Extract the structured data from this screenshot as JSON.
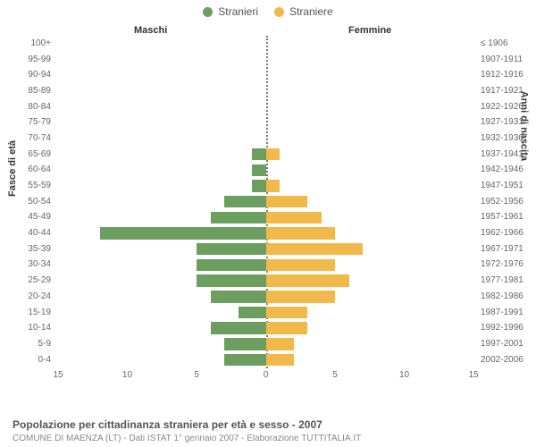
{
  "legend": {
    "male": {
      "label": "Stranieri",
      "color": "#6b9e5f"
    },
    "female": {
      "label": "Straniere",
      "color": "#f0b94a"
    }
  },
  "section_titles": {
    "male": "Maschi",
    "female": "Femmine"
  },
  "axis_titles": {
    "left": "Fasce di età",
    "right": "Anni di nascita"
  },
  "x_axis": {
    "min": -15,
    "max": 15,
    "ticks": [
      -15,
      -10,
      -5,
      0,
      5,
      10,
      15
    ],
    "tick_labels": [
      "15",
      "10",
      "5",
      "0",
      "5",
      "10",
      "15"
    ]
  },
  "styling": {
    "male_bar_color": "#6b9e5f",
    "female_bar_color": "#f0b94a",
    "grid_zero_color": "#777777",
    "background": "#ffffff",
    "label_color": "#666666",
    "title_fontsize": 12,
    "label_fontsize": 10,
    "bar_height_ratio": 0.76
  },
  "rows": [
    {
      "age": "100+",
      "birth": "≤ 1906",
      "m": 0,
      "f": 0
    },
    {
      "age": "95-99",
      "birth": "1907-1911",
      "m": 0,
      "f": 0
    },
    {
      "age": "90-94",
      "birth": "1912-1916",
      "m": 0,
      "f": 0
    },
    {
      "age": "85-89",
      "birth": "1917-1921",
      "m": 0,
      "f": 0
    },
    {
      "age": "80-84",
      "birth": "1922-1926",
      "m": 0,
      "f": 0
    },
    {
      "age": "75-79",
      "birth": "1927-1931",
      "m": 0,
      "f": 0
    },
    {
      "age": "70-74",
      "birth": "1932-1936",
      "m": 0,
      "f": 0
    },
    {
      "age": "65-69",
      "birth": "1937-1941",
      "m": 1,
      "f": 1
    },
    {
      "age": "60-64",
      "birth": "1942-1946",
      "m": 1,
      "f": 0
    },
    {
      "age": "55-59",
      "birth": "1947-1951",
      "m": 1,
      "f": 1
    },
    {
      "age": "50-54",
      "birth": "1952-1956",
      "m": 3,
      "f": 3
    },
    {
      "age": "45-49",
      "birth": "1957-1961",
      "m": 4,
      "f": 4
    },
    {
      "age": "40-44",
      "birth": "1962-1966",
      "m": 12,
      "f": 5
    },
    {
      "age": "35-39",
      "birth": "1967-1971",
      "m": 5,
      "f": 7
    },
    {
      "age": "30-34",
      "birth": "1972-1976",
      "m": 5,
      "f": 5
    },
    {
      "age": "25-29",
      "birth": "1977-1981",
      "m": 5,
      "f": 6
    },
    {
      "age": "20-24",
      "birth": "1982-1986",
      "m": 4,
      "f": 5
    },
    {
      "age": "15-19",
      "birth": "1987-1991",
      "m": 2,
      "f": 3
    },
    {
      "age": "10-14",
      "birth": "1992-1996",
      "m": 4,
      "f": 3
    },
    {
      "age": "5-9",
      "birth": "1997-2001",
      "m": 3,
      "f": 2
    },
    {
      "age": "0-4",
      "birth": "2002-2006",
      "m": 3,
      "f": 2
    }
  ],
  "footer": {
    "title": "Popolazione per cittadinanza straniera per età e sesso - 2007",
    "subtitle": "COMUNE DI MAENZA (LT) - Dati ISTAT 1° gennaio 2007 - Elaborazione TUTTITALIA.IT"
  }
}
